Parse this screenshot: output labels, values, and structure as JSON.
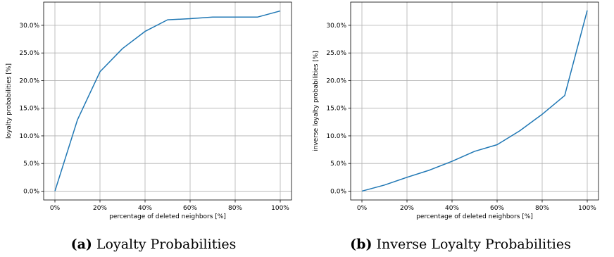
{
  "chart_data": [
    {
      "type": "line",
      "xlabel": "percentage of deleted neighbors [%]",
      "ylabel": "loyalty probabilities [%]",
      "x": [
        0,
        10,
        20,
        30,
        40,
        50,
        60,
        70,
        80,
        90,
        100
      ],
      "series": [
        {
          "values": [
            0.0,
            12.9,
            21.6,
            25.8,
            28.9,
            31.0,
            31.2,
            31.5,
            31.5,
            31.5,
            32.6
          ]
        }
      ],
      "xticks": [
        "0%",
        "20%",
        "40%",
        "60%",
        "80%",
        "100%"
      ],
      "yticks": [
        "0.0%",
        "5.0%",
        "10.0%",
        "15.0%",
        "20.0%",
        "25.0%",
        "30.0%"
      ],
      "xlim": [
        -5,
        105
      ],
      "ylim": [
        -1.6,
        34.2
      ],
      "grid": true,
      "color": "#1f77b4",
      "caption_tag": "(a)",
      "caption_text": "Loyalty Probabilities"
    },
    {
      "type": "line",
      "xlabel": "percentage of deleted neighbors [%]",
      "ylabel": "inverse loyalty probabilities [%]",
      "x": [
        0,
        10,
        20,
        30,
        40,
        50,
        60,
        70,
        80,
        90,
        100
      ],
      "series": [
        {
          "values": [
            0.0,
            1.1,
            2.5,
            3.8,
            5.4,
            7.2,
            8.4,
            10.9,
            13.9,
            17.3,
            32.7
          ]
        }
      ],
      "xticks": [
        "0%",
        "20%",
        "40%",
        "60%",
        "80%",
        "100%"
      ],
      "yticks": [
        "0.0%",
        "5.0%",
        "10.0%",
        "15.0%",
        "20.0%",
        "25.0%",
        "30.0%"
      ],
      "xlim": [
        -5,
        105
      ],
      "ylim": [
        -1.6,
        34.2
      ],
      "grid": true,
      "color": "#1f77b4",
      "caption_tag": "(b)",
      "caption_text": "Inverse Loyalty Probabilities"
    }
  ]
}
